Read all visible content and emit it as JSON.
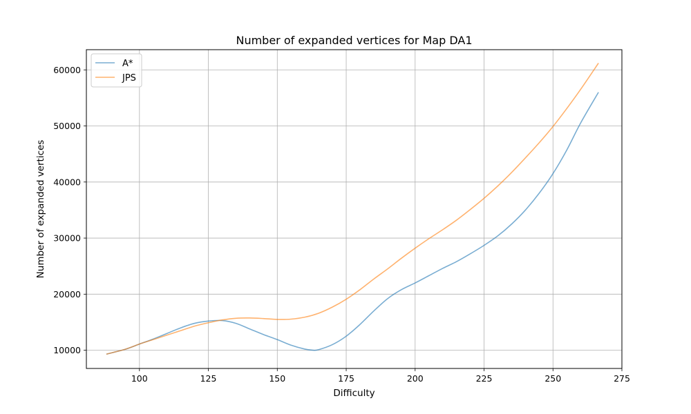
{
  "chart_data": {
    "type": "line",
    "title": "Number of expanded vertices for Map DA1",
    "xlabel": "Difficulty",
    "ylabel": "Number of expanded vertices",
    "xlim": [
      80.75,
      275.0
    ],
    "ylim": [
      6750,
      63600
    ],
    "xticks": [
      100,
      125,
      150,
      175,
      200,
      225,
      250,
      275
    ],
    "yticks": [
      10000,
      20000,
      30000,
      40000,
      50000,
      60000
    ],
    "grid": true,
    "legend_position": "top-left",
    "series": [
      {
        "name": "A*",
        "color": "#1f77b4",
        "x": [
          88,
          95,
          100,
          105,
          110,
          115,
          120,
          125,
          130,
          135,
          140,
          145,
          150,
          155,
          160,
          163,
          165,
          170,
          175,
          180,
          185,
          190,
          195,
          200,
          205,
          210,
          215,
          220,
          225,
          230,
          235,
          240,
          245,
          250,
          255,
          260,
          266.5
        ],
        "y": [
          9300,
          10200,
          11100,
          12000,
          13000,
          14000,
          14800,
          15200,
          15300,
          14800,
          13800,
          12800,
          11900,
          10900,
          10200,
          10000,
          10100,
          11000,
          12500,
          14600,
          17000,
          19200,
          20800,
          22000,
          23300,
          24600,
          25800,
          27200,
          28700,
          30400,
          32500,
          35000,
          38000,
          41500,
          45700,
          50500,
          56000
        ]
      },
      {
        "name": "JPS",
        "color": "#ff7f0e",
        "x": [
          88,
          95,
          100,
          105,
          110,
          115,
          120,
          125,
          130,
          135,
          140,
          145,
          150,
          155,
          160,
          165,
          170,
          175,
          180,
          185,
          190,
          195,
          200,
          205,
          210,
          215,
          220,
          225,
          230,
          235,
          240,
          245,
          250,
          255,
          260,
          266.5
        ],
        "y": [
          9300,
          10200,
          11100,
          11900,
          12700,
          13500,
          14300,
          14900,
          15400,
          15700,
          15750,
          15650,
          15500,
          15550,
          15900,
          16600,
          17700,
          19100,
          20800,
          22700,
          24500,
          26400,
          28200,
          29900,
          31500,
          33200,
          35100,
          37100,
          39300,
          41700,
          44300,
          47000,
          49900,
          53100,
          56500,
          61200
        ]
      }
    ]
  }
}
